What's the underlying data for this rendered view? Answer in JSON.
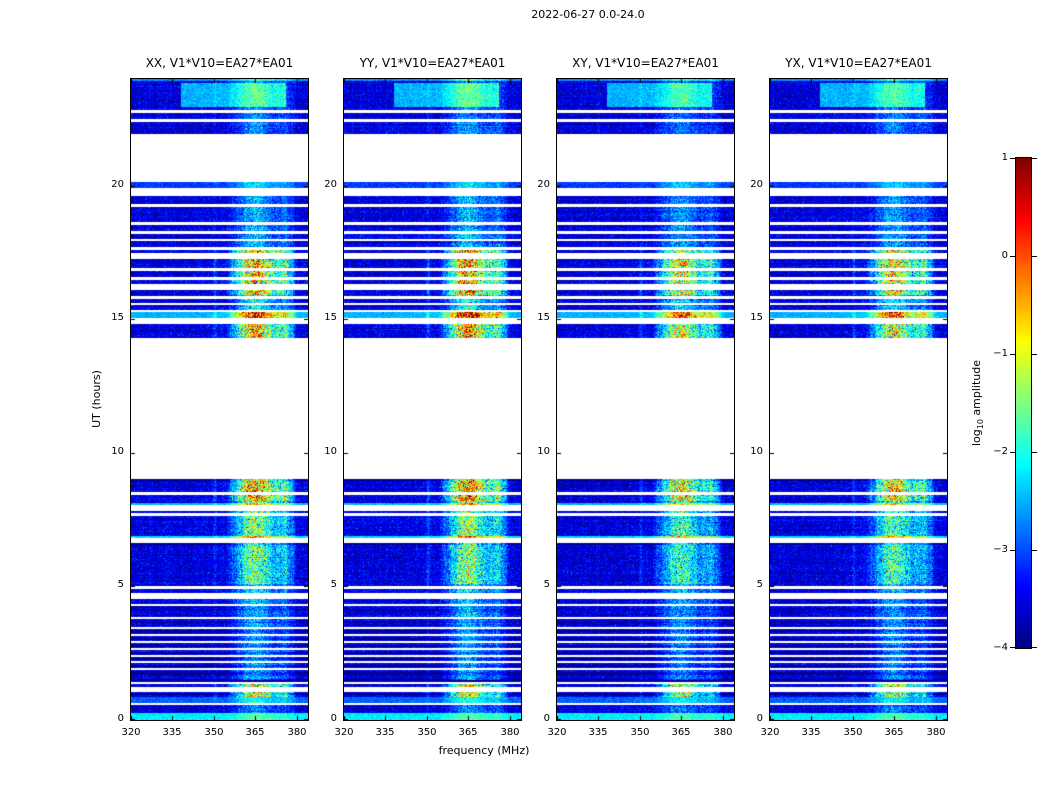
{
  "chart_data": {
    "type": "heatmap",
    "title": "2022-06-27 0.0-24.0",
    "xlabel": "frequency (MHz)",
    "ylabel": "UT (hours)",
    "x_range": [
      320,
      384
    ],
    "x_ticks": [
      320,
      335,
      350,
      365,
      380
    ],
    "x_tick_labels": [
      "320",
      "335",
      "350",
      "365",
      "380"
    ],
    "y_range": [
      0,
      24
    ],
    "y_ticks": [
      0,
      5,
      10,
      15,
      20
    ],
    "y_tick_labels": [
      "0",
      "5",
      "10",
      "15",
      "20"
    ],
    "panels": [
      {
        "pol": "XX",
        "title": "XX, V1*V10=EA27*EA01",
        "baseline": "V1*V10=EA27*EA01",
        "seed": 101,
        "stripe_gain": 1.0
      },
      {
        "pol": "YY",
        "title": "YY, V1*V10=EA27*EA01",
        "baseline": "V1*V10=EA27*EA01",
        "seed": 202,
        "stripe_gain": 1.05
      },
      {
        "pol": "XY",
        "title": "XY, V1*V10=EA27*EA01",
        "baseline": "V1*V10=EA27*EA01",
        "seed": 303,
        "stripe_gain": 0.85
      },
      {
        "pol": "YX",
        "title": "YX, V1*V10=EA27*EA01",
        "baseline": "V1*V10=EA27*EA01",
        "seed": 404,
        "stripe_gain": 0.9
      }
    ],
    "colorbar": {
      "label": "log10 amplitude",
      "label_prefix": "log",
      "label_sub": "10",
      "label_suffix": " amplitude",
      "range": [
        -4,
        1
      ],
      "ticks": [
        1,
        0,
        -1,
        -2,
        -3,
        -4
      ],
      "tick_labels": [
        "1",
        "0",
        "−1",
        "−2",
        "−3",
        "−4"
      ],
      "colormap": "jet"
    },
    "heatmap_model": {
      "no_data_color": "#ffffff",
      "noise_base": -3.55,
      "noise_sigma": 0.24,
      "row_sigma": 0.08,
      "col_sigma": 0.05,
      "data_blocks": [
        [
          0.0,
          9.02
        ],
        [
          14.3,
          19.62
        ],
        [
          19.92,
          20.14
        ],
        [
          21.94,
          24.0
        ]
      ],
      "white_lines": [
        [
          22.74,
          22.85
        ],
        [
          22.4,
          22.51
        ],
        [
          19.21,
          19.32
        ],
        [
          18.53,
          18.64
        ],
        [
          18.19,
          18.31
        ],
        [
          17.93,
          18.01
        ],
        [
          17.6,
          17.71
        ],
        [
          17.26,
          17.49
        ],
        [
          16.81,
          16.92
        ],
        [
          16.47,
          16.59
        ],
        [
          16.1,
          16.32
        ],
        [
          15.76,
          15.87
        ],
        [
          15.54,
          15.61
        ],
        [
          15.28,
          15.35
        ],
        [
          14.83,
          15.05
        ],
        [
          8.43,
          8.54
        ],
        [
          7.83,
          8.05
        ],
        [
          7.64,
          7.75
        ],
        [
          6.63,
          6.81
        ],
        [
          4.9,
          5.02
        ],
        [
          4.53,
          4.76
        ],
        [
          4.27,
          4.34
        ],
        [
          3.78,
          3.86
        ],
        [
          3.41,
          3.48
        ],
        [
          3.15,
          3.22
        ],
        [
          2.88,
          2.96
        ],
        [
          2.62,
          2.7
        ],
        [
          2.36,
          2.43
        ],
        [
          2.13,
          2.21
        ],
        [
          1.87,
          1.95
        ],
        [
          1.35,
          1.42
        ],
        [
          1.05,
          1.24
        ],
        [
          0.56,
          0.64
        ]
      ],
      "bright_rows": [
        {
          "t0": 23.92,
          "t1": 24.0,
          "value": -2.7
        },
        {
          "t0": 19.92,
          "t1": 20.14,
          "value": -3.1
        },
        {
          "t0": 15.05,
          "t1": 15.28,
          "value": -2.5
        },
        {
          "t0": 8.05,
          "t1": 8.13,
          "value": -2.5
        },
        {
          "t0": 6.81,
          "t1": 6.89,
          "value": -2.3
        },
        {
          "t0": 0.64,
          "t1": 0.86,
          "value": -2.9
        },
        {
          "t0": 0.0,
          "t1": 0.28,
          "value": -2.2
        }
      ],
      "bright_patch": {
        "t0": 22.95,
        "t1": 23.85,
        "f0": 338,
        "f1": 376,
        "value": -2.5
      },
      "dark_rows": [
        {
          "t0": 8.93,
          "t1": 9.02,
          "value": -3.9
        },
        {
          "t0": 6.55,
          "t1": 6.63,
          "value": -3.9
        },
        {
          "t0": 4.1,
          "t1": 4.16,
          "value": -3.85
        },
        {
          "t0": 3.62,
          "t1": 3.68,
          "value": -3.85
        },
        {
          "t0": 3.3,
          "t1": 3.36,
          "value": -3.85
        },
        {
          "t0": 3.0,
          "t1": 3.06,
          "value": -3.85
        },
        {
          "t0": 2.74,
          "t1": 2.8,
          "value": -3.85
        },
        {
          "t0": 2.48,
          "t1": 2.54,
          "value": -3.85
        },
        {
          "t0": 2.25,
          "t1": 2.31,
          "value": -3.85
        },
        {
          "t0": 1.99,
          "t1": 2.05,
          "value": -3.85
        },
        {
          "t0": 1.7,
          "t1": 1.78,
          "value": -3.85
        },
        {
          "t0": 1.44,
          "t1": 1.52,
          "value": -3.85
        },
        {
          "t0": 0.95,
          "t1": 1.02,
          "value": -3.85
        }
      ],
      "rfi_stripes": [
        {
          "f": 350.4,
          "w": 0.6,
          "a": 0.22
        },
        {
          "f": 356.5,
          "w": 1.0,
          "a": 0.3
        },
        {
          "f": 358.9,
          "w": 1.4,
          "a": 0.55
        },
        {
          "f": 361.6,
          "w": 1.7,
          "a": 0.85
        },
        {
          "f": 364.4,
          "w": 2.0,
          "a": 1.0
        },
        {
          "f": 367.3,
          "w": 2.0,
          "a": 0.92
        },
        {
          "f": 370.2,
          "w": 1.6,
          "a": 0.65
        },
        {
          "f": 372.9,
          "w": 1.4,
          "a": 0.6
        },
        {
          "f": 375.7,
          "w": 1.7,
          "a": 0.78
        },
        {
          "f": 378.3,
          "w": 1.0,
          "a": 0.35
        }
      ],
      "rfi_windows": [
        {
          "t0": 21.94,
          "t1": 24.0,
          "boost": 0.7
        },
        {
          "t0": 19.92,
          "t1": 20.14,
          "boost": 0.7
        },
        {
          "t0": 17.7,
          "t1": 19.62,
          "boost": 0.85
        },
        {
          "t0": 15.9,
          "t1": 17.7,
          "boost": 2.4
        },
        {
          "t0": 15.35,
          "t1": 15.9,
          "boost": 1.2
        },
        {
          "t0": 14.3,
          "t1": 15.35,
          "boost": 2.3
        },
        {
          "t0": 8.2,
          "t1": 9.02,
          "boost": 2.5
        },
        {
          "t0": 5.1,
          "t1": 8.2,
          "boost": 1.6
        },
        {
          "t0": 4.5,
          "t1": 5.1,
          "boost": 1.0
        },
        {
          "t0": 1.5,
          "t1": 4.5,
          "boost": 0.85
        },
        {
          "t0": 0.85,
          "t1": 1.35,
          "boost": 2.1
        },
        {
          "t0": 0.28,
          "t1": 0.85,
          "boost": 0.7
        },
        {
          "t0": 0.0,
          "t1": 0.28,
          "boost": 0.4
        }
      ]
    }
  }
}
